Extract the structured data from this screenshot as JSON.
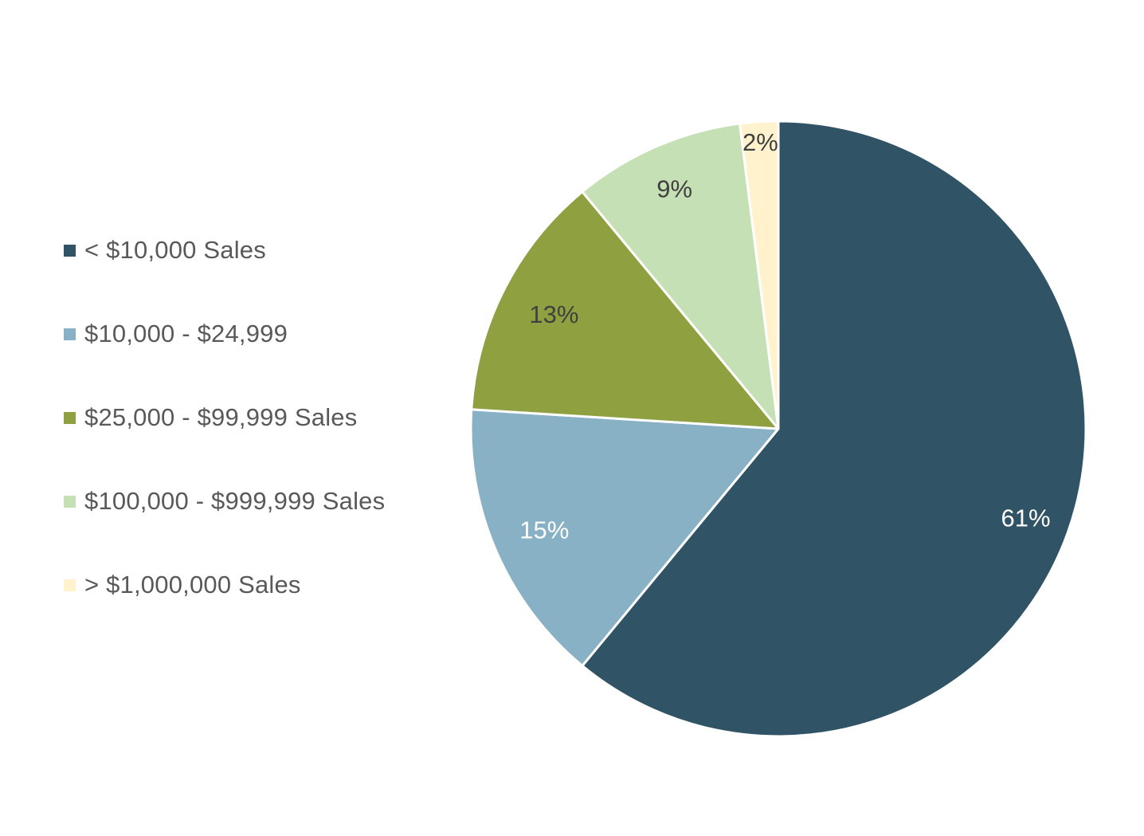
{
  "chart_data": {
    "type": "pie",
    "title": "",
    "categories": [
      "< $10,000 Sales",
      "$10,000 - $24,999",
      "$25,000 - $99,999 Sales",
      "$100,000 - $999,999 Sales",
      "> $1,000,000 Sales"
    ],
    "values": [
      61,
      15,
      13,
      9,
      2
    ],
    "data_labels": [
      "61%",
      "15%",
      "13%",
      "9%",
      "2%"
    ],
    "colors": [
      "#305466",
      "#89b1c5",
      "#8fa040",
      "#c6e0b5",
      "#fff2cc"
    ],
    "label_colors": [
      "#ffffff",
      "#ffffff",
      "#404040",
      "#404040",
      "#404040"
    ],
    "start_angle": "12 o'clock",
    "direction": "clockwise",
    "legend_position": "left"
  }
}
